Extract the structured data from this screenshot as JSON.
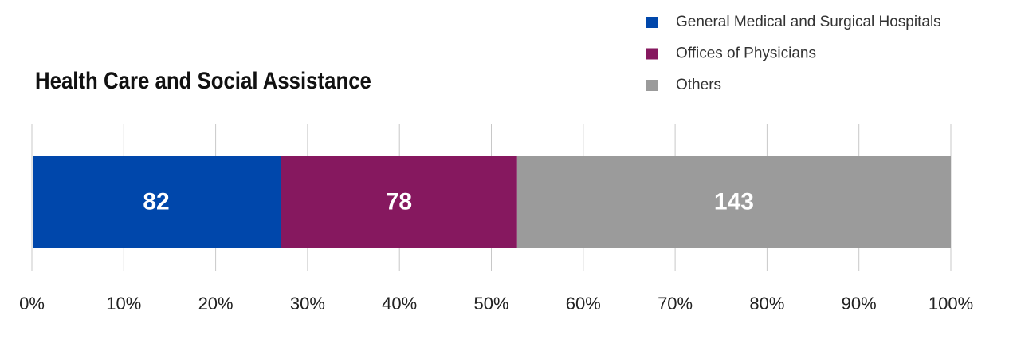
{
  "chart_data": {
    "type": "bar",
    "orientation": "horizontal",
    "stacking": "percent",
    "title": "Health Care and Social Assistance",
    "categories": [
      null
    ],
    "series": [
      {
        "name": "General Medical and Surgical Hospitals",
        "color": "#0047ab",
        "values": [
          82
        ]
      },
      {
        "name": "Offices of Physicians",
        "color": "#86185f",
        "values": [
          78
        ]
      },
      {
        "name": "Others",
        "color": "#9b9b9b",
        "values": [
          143
        ]
      }
    ],
    "xlim": [
      0,
      100
    ],
    "xticks": [
      {
        "value": 0,
        "label": "0%"
      },
      {
        "value": 10,
        "label": "10%"
      },
      {
        "value": 20,
        "label": "20%"
      },
      {
        "value": 30,
        "label": "30%"
      },
      {
        "value": 40,
        "label": "40%"
      },
      {
        "value": 50,
        "label": "50%"
      },
      {
        "value": 60,
        "label": "60%"
      },
      {
        "value": 70,
        "label": "70%"
      },
      {
        "value": 80,
        "label": "80%"
      },
      {
        "value": 90,
        "label": "90%"
      },
      {
        "value": 100,
        "label": "100%"
      }
    ],
    "grid": true,
    "legend": "top-right"
  }
}
